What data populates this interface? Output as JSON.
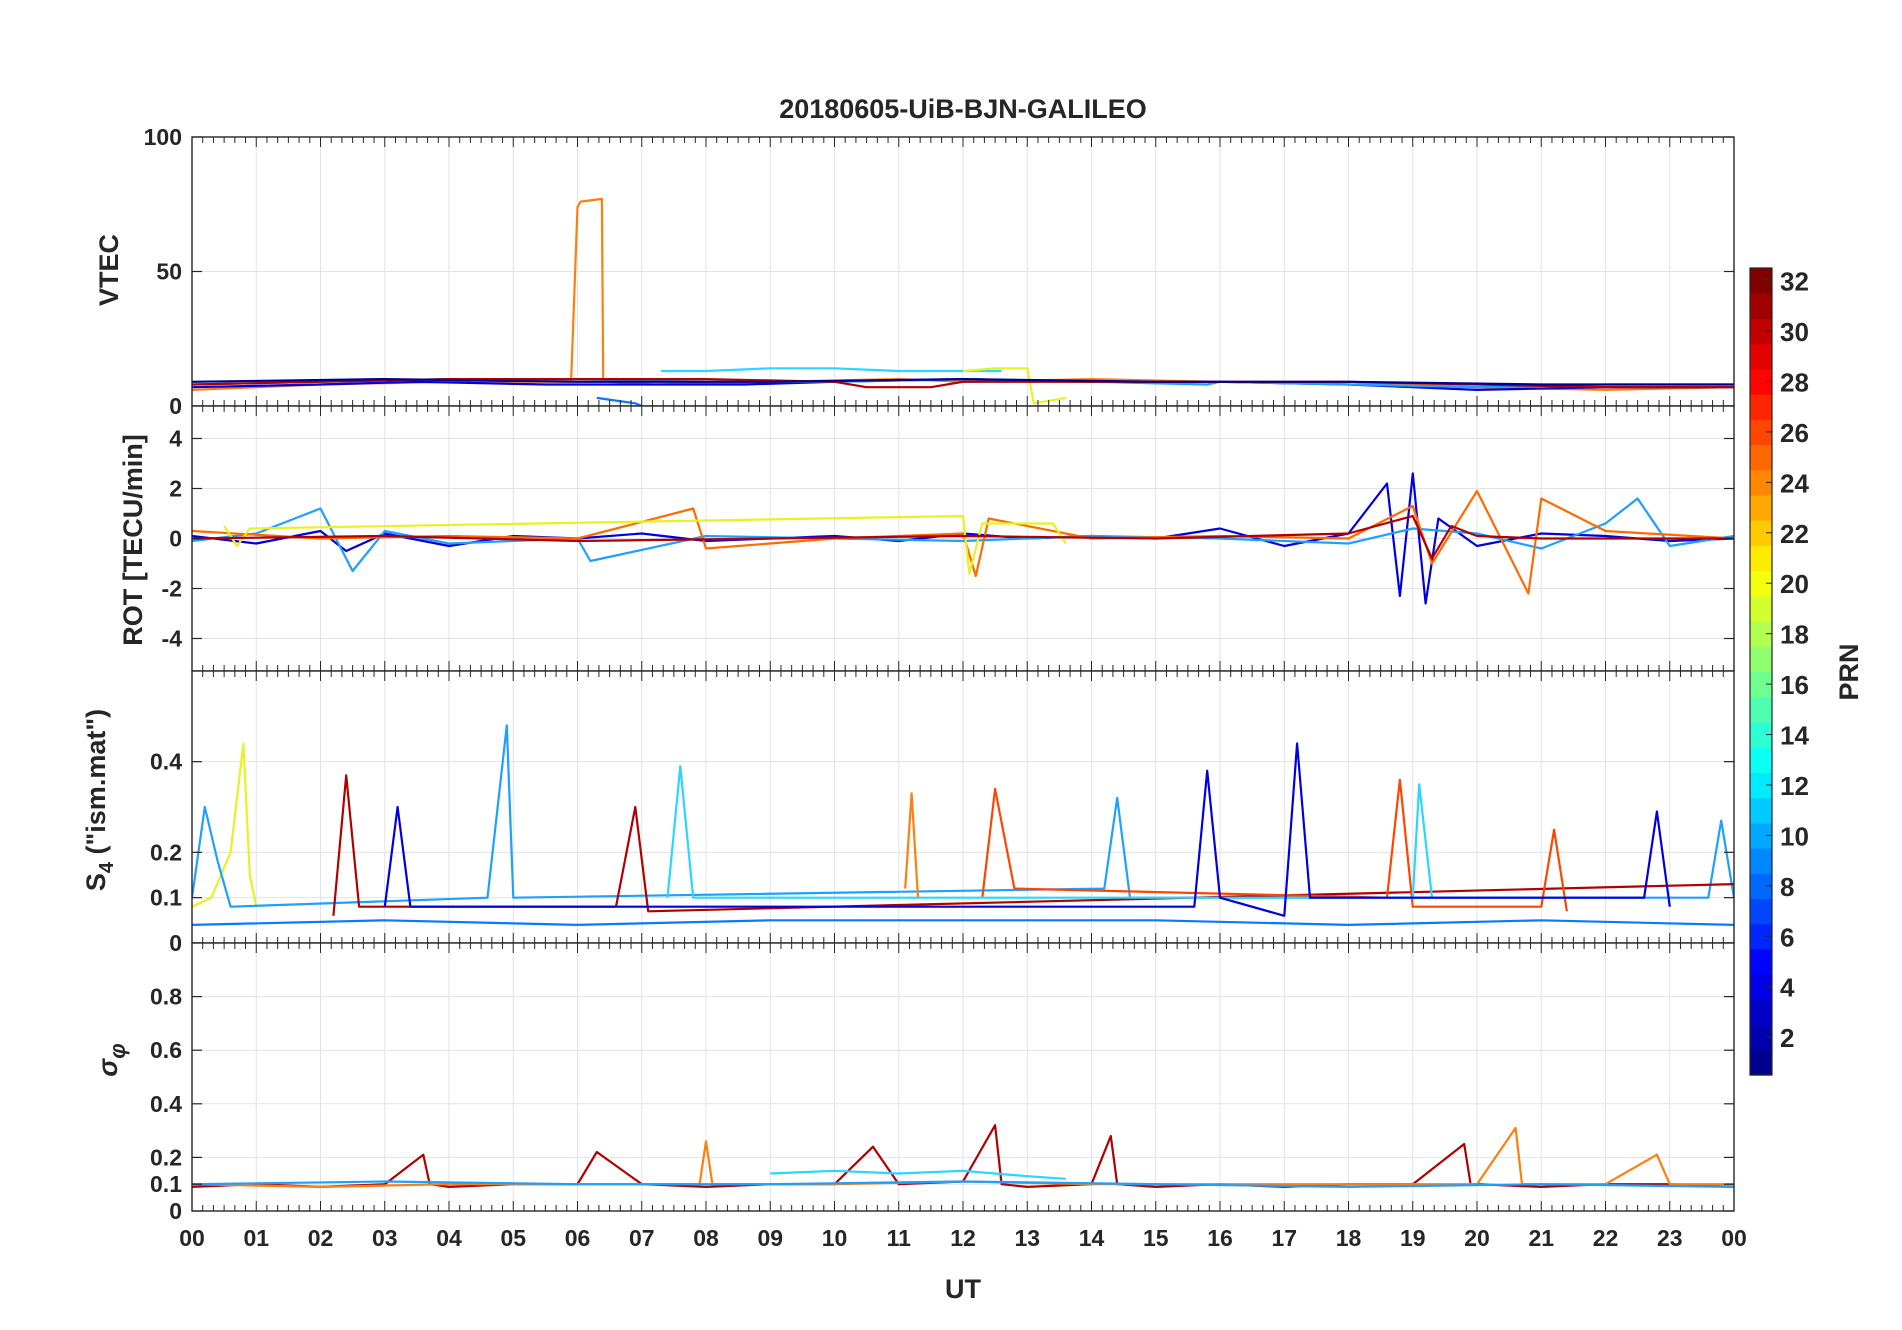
{
  "figure": {
    "title": "20180605-UiB-BJN-GALILEO",
    "xlabel": "UT",
    "x_tick_labels": [
      "00",
      "01",
      "02",
      "03",
      "04",
      "05",
      "06",
      "07",
      "08",
      "09",
      "10",
      "11",
      "12",
      "13",
      "14",
      "15",
      "16",
      "17",
      "18",
      "19",
      "20",
      "21",
      "22",
      "23",
      "00"
    ]
  },
  "colorbar": {
    "label": "PRN",
    "range": [
      1,
      32
    ],
    "tick_labels": [
      "2",
      "4",
      "6",
      "8",
      "10",
      "12",
      "14",
      "16",
      "18",
      "20",
      "22",
      "24",
      "26",
      "28",
      "30",
      "32"
    ],
    "colormap": [
      "#00008f",
      "#0000ff",
      "#0080ff",
      "#00ffff",
      "#80ff80",
      "#ffff00",
      "#ff8000",
      "#ff0000",
      "#800000"
    ]
  },
  "chart_data": [
    {
      "type": "line",
      "panel": "vtec",
      "ylabel": "VTEC",
      "xlim": [
        0,
        24
      ],
      "ylim": [
        0,
        100
      ],
      "y_ticks": [
        0,
        50,
        100
      ],
      "y_tick_labels": [
        "0",
        "50",
        "100"
      ],
      "series": [
        {
          "name": "PRN 24",
          "color": "#ff7f0e",
          "x": [
            0.0,
            2.0,
            4.0,
            5.9,
            6.0,
            6.05,
            6.38,
            6.4,
            6.5,
            7.2,
            9.0,
            11.0,
            12.0,
            14.0,
            16.0,
            18.0,
            20.0,
            22.0,
            24.0
          ],
          "y": [
            6,
            8,
            9,
            9,
            74,
            76,
            77,
            10,
            9,
            8,
            9,
            10,
            9,
            10,
            9,
            9,
            7,
            6,
            7
          ]
        },
        {
          "name": "PRN 4",
          "color": "#0000e0",
          "x": [
            0.0,
            2.0,
            3.5,
            5.5,
            7.0,
            8.6,
            10.0,
            12.0,
            14.0,
            16.0,
            18.0,
            19.0,
            20.0,
            22.0,
            24.0
          ],
          "y": [
            7,
            8,
            9,
            8,
            8,
            8,
            9,
            10,
            9,
            9,
            8,
            7,
            6,
            7,
            7
          ]
        },
        {
          "name": "PRN 10",
          "color": "#1f9fff",
          "x": [
            0.0,
            2.0,
            4.0,
            6.0,
            8.0,
            10.0,
            12.0,
            14.0,
            15.8,
            16.0,
            18.0,
            20.0,
            22.0,
            24.0
          ],
          "y": [
            8,
            9,
            10,
            10,
            9,
            9,
            10,
            9,
            8,
            9,
            8,
            7,
            8,
            8
          ]
        },
        {
          "name": "PRN 12",
          "color": "#29d6ff",
          "x": [
            7.3,
            8.0,
            9.0,
            10.0,
            11.0,
            12.0,
            12.6
          ],
          "y": [
            13,
            13,
            14,
            14,
            13,
            13,
            13
          ]
        },
        {
          "name": "PRN 20",
          "color": "#e8f21e",
          "x": [
            12.0,
            12.5,
            13.0,
            13.1,
            13.6
          ],
          "y": [
            13,
            14,
            14,
            1,
            3
          ]
        },
        {
          "name": "PRN 30",
          "color": "#b00000",
          "x": [
            0.0,
            2.0,
            4.0,
            6.0,
            8.0,
            10.0,
            10.5,
            11.5,
            12.0,
            14.0,
            16.0,
            18.0,
            20.0,
            22.0,
            24.0
          ],
          "y": [
            8,
            9,
            10,
            10,
            10,
            9,
            7,
            7,
            9,
            9,
            9,
            9,
            8,
            7,
            7
          ]
        },
        {
          "name": "PRN 2",
          "color": "#00008f",
          "x": [
            0.0,
            3.0,
            6.0,
            9.0,
            12.0,
            15.0,
            18.0,
            21.0,
            24.0
          ],
          "y": [
            9,
            10,
            9,
            9,
            10,
            9,
            9,
            8,
            8
          ]
        },
        {
          "name": "PRN 9",
          "color": "#0a78ff",
          "x": [
            6.3,
            6.6,
            6.9,
            7.0
          ],
          "y": [
            3,
            2,
            1,
            0
          ]
        }
      ]
    },
    {
      "type": "line",
      "panel": "rot",
      "ylabel": "ROT [TECU/min]",
      "xlim": [
        0,
        24
      ],
      "ylim": [
        -5.3,
        5.3
      ],
      "y_ticks": [
        -4,
        -2,
        0,
        2,
        4
      ],
      "y_tick_labels": [
        "-4",
        "-2",
        "0",
        "2",
        "4"
      ],
      "series": [
        {
          "name": "PRN 4",
          "color": "#0000e0",
          "x": [
            0,
            1,
            2,
            2.4,
            3,
            4,
            5,
            6,
            7,
            8,
            9,
            10,
            11,
            12,
            13,
            14,
            15,
            16,
            17,
            18,
            18.6,
            18.8,
            19.0,
            19.2,
            19.4,
            20,
            21,
            22,
            23,
            24
          ],
          "y": [
            0.1,
            -0.2,
            0.3,
            -0.5,
            0.2,
            -0.3,
            0.1,
            0.0,
            0.2,
            -0.1,
            0.0,
            0.1,
            -0.1,
            0.2,
            0.0,
            0.1,
            0.0,
            0.4,
            -0.3,
            0.2,
            2.2,
            -2.3,
            2.6,
            -2.6,
            0.8,
            -0.3,
            0.2,
            0.1,
            -0.1,
            0.0
          ]
        },
        {
          "name": "PRN 10",
          "color": "#1f9fff",
          "x": [
            0,
            1,
            2,
            2.5,
            3,
            4,
            6,
            6.2,
            8,
            10,
            12,
            14,
            16,
            18,
            19,
            20,
            21,
            22,
            22.5,
            23,
            24
          ],
          "y": [
            -0.1,
            0.2,
            1.2,
            -1.3,
            0.3,
            -0.2,
            0.0,
            -0.9,
            0.1,
            0.0,
            -0.1,
            0.1,
            0.0,
            -0.2,
            0.4,
            0.2,
            -0.4,
            0.6,
            1.6,
            -0.3,
            0.1
          ]
        },
        {
          "name": "PRN 24",
          "color": "#ff6a00",
          "x": [
            0,
            2,
            4,
            6,
            7.8,
            8,
            10,
            12,
            12.2,
            12.4,
            14,
            16,
            18,
            19.0,
            19.3,
            20,
            20.8,
            21,
            22,
            24
          ],
          "y": [
            0.3,
            0.0,
            0.1,
            0.0,
            1.2,
            -0.4,
            0.0,
            0.2,
            -1.5,
            0.8,
            0.0,
            0.1,
            0.0,
            1.3,
            -1.0,
            1.9,
            -2.2,
            1.6,
            0.3,
            0.0
          ]
        },
        {
          "name": "PRN 20",
          "color": "#e8f21e",
          "x": [
            0.5,
            0.7,
            0.9,
            12.0,
            12.1,
            12.3,
            13.4,
            13.6
          ],
          "y": [
            0.5,
            -0.3,
            0.4,
            0.9,
            -1.4,
            0.6,
            0.6,
            -0.2
          ]
        },
        {
          "name": "PRN 30",
          "color": "#b00000",
          "x": [
            0,
            3,
            6,
            9,
            12,
            15,
            18,
            19,
            19.3,
            19.6,
            20,
            21,
            24
          ],
          "y": [
            0.0,
            0.1,
            -0.1,
            0.0,
            0.1,
            0.0,
            0.2,
            0.9,
            -0.8,
            0.5,
            0.1,
            0.0,
            0.0
          ]
        }
      ]
    },
    {
      "type": "line",
      "panel": "s4",
      "ylabel": "S4 (\"ism.mat\")",
      "xlim": [
        0,
        24
      ],
      "ylim": [
        0,
        0.6
      ],
      "y_ticks": [
        0,
        0.1,
        0.2,
        0.4
      ],
      "y_tick_labels": [
        "0",
        "0.1",
        "0.2",
        "0.4"
      ],
      "series": [
        {
          "name": "PRN 20",
          "color": "#e8f21e",
          "x": [
            0.0,
            0.3,
            0.6,
            0.8,
            0.9,
            1.0
          ],
          "y": [
            0.08,
            0.1,
            0.2,
            0.44,
            0.15,
            0.08
          ]
        },
        {
          "name": "PRN 10",
          "color": "#1f9fff",
          "x": [
            0.0,
            0.2,
            0.4,
            0.6,
            4.6,
            4.9,
            5.0,
            14.2,
            14.4,
            14.6,
            23.6,
            23.8,
            24.0
          ],
          "y": [
            0.1,
            0.3,
            0.18,
            0.08,
            0.1,
            0.48,
            0.1,
            0.12,
            0.32,
            0.1,
            0.1,
            0.27,
            0.1
          ]
        },
        {
          "name": "PRN 30",
          "color": "#b00000",
          "x": [
            2.2,
            2.4,
            2.6,
            6.6,
            6.9,
            7.1,
            24.0
          ],
          "y": [
            0.06,
            0.37,
            0.08,
            0.08,
            0.3,
            0.07,
            0.13
          ]
        },
        {
          "name": "PRN 26",
          "color": "#ff4500",
          "x": [
            12.3,
            12.5,
            12.8,
            18.6,
            18.8,
            19.0,
            21.0,
            21.2,
            21.4
          ],
          "y": [
            0.1,
            0.34,
            0.12,
            0.1,
            0.36,
            0.08,
            0.08,
            0.25,
            0.07
          ]
        },
        {
          "name": "PRN 12",
          "color": "#29d6ff",
          "x": [
            7.4,
            7.6,
            7.8,
            19.0,
            19.1,
            19.3
          ],
          "y": [
            0.1,
            0.39,
            0.1,
            0.1,
            0.35,
            0.1
          ]
        },
        {
          "name": "PRN 4",
          "color": "#0000e0",
          "x": [
            3.0,
            3.2,
            3.4,
            15.6,
            15.8,
            16.0,
            17.0,
            17.2,
            17.4,
            22.6,
            22.8,
            23.0
          ],
          "y": [
            0.08,
            0.3,
            0.08,
            0.08,
            0.38,
            0.1,
            0.06,
            0.44,
            0.1,
            0.1,
            0.29,
            0.08
          ]
        },
        {
          "name": "PRN 24",
          "color": "#ff7f0e",
          "x": [
            11.1,
            11.2,
            11.3
          ],
          "y": [
            0.12,
            0.33,
            0.1
          ]
        },
        {
          "name": "PRN 8",
          "color": "#0a78ff",
          "x": [
            0,
            3,
            6,
            9,
            12,
            15,
            18,
            21,
            24
          ],
          "y": [
            0.04,
            0.05,
            0.04,
            0.05,
            0.05,
            0.05,
            0.04,
            0.05,
            0.04
          ]
        }
      ]
    },
    {
      "type": "line",
      "panel": "sigma_phi",
      "ylabel": "σφ",
      "xlim": [
        0,
        24
      ],
      "ylim": [
        0,
        1
      ],
      "y_ticks": [
        0,
        0.1,
        0.2,
        0.4,
        0.6,
        0.8
      ],
      "y_tick_labels": [
        "0",
        "0.1",
        "0.2",
        "0.4",
        "0.6",
        "0.8"
      ],
      "series": [
        {
          "name": "PRN 30",
          "color": "#b00000",
          "x": [
            0,
            1,
            2,
            3,
            3.6,
            3.7,
            4,
            5,
            6,
            6.3,
            7,
            8,
            9,
            10,
            10.6,
            11,
            12,
            12.5,
            12.6,
            13,
            14,
            14.3,
            14.4,
            15,
            16,
            17,
            18,
            19,
            19.8,
            19.9,
            20,
            21,
            22,
            23,
            24
          ],
          "y": [
            0.09,
            0.1,
            0.09,
            0.1,
            0.21,
            0.1,
            0.09,
            0.1,
            0.1,
            0.22,
            0.1,
            0.09,
            0.1,
            0.1,
            0.24,
            0.1,
            0.11,
            0.32,
            0.1,
            0.09,
            0.1,
            0.28,
            0.1,
            0.09,
            0.1,
            0.09,
            0.1,
            0.1,
            0.25,
            0.1,
            0.1,
            0.09,
            0.1,
            0.1,
            0.09
          ]
        },
        {
          "name": "PRN 24",
          "color": "#ff7f0e",
          "x": [
            0,
            2,
            4,
            6,
            7.9,
            8.0,
            8.1,
            10,
            12,
            14,
            16,
            18,
            20,
            20.6,
            20.7,
            21,
            22,
            22.8,
            23,
            24
          ],
          "y": [
            0.1,
            0.09,
            0.1,
            0.1,
            0.1,
            0.26,
            0.1,
            0.1,
            0.11,
            0.1,
            0.1,
            0.1,
            0.1,
            0.31,
            0.1,
            0.1,
            0.1,
            0.21,
            0.1,
            0.1
          ]
        },
        {
          "name": "PRN 12",
          "color": "#29d6ff",
          "x": [
            9.0,
            10.0,
            11.0,
            12.0,
            13.0,
            13.6
          ],
          "y": [
            0.14,
            0.15,
            0.14,
            0.15,
            0.13,
            0.12
          ]
        },
        {
          "name": "PRN 10",
          "color": "#1f9fff",
          "x": [
            0,
            3,
            6,
            9,
            12,
            15,
            18,
            21,
            24
          ],
          "y": [
            0.1,
            0.11,
            0.1,
            0.1,
            0.11,
            0.1,
            0.09,
            0.1,
            0.09
          ]
        }
      ]
    }
  ]
}
